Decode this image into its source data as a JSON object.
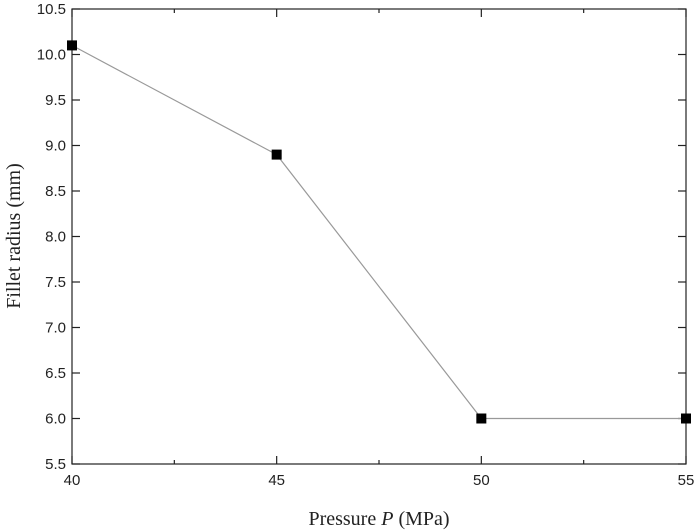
{
  "chart_data": {
    "type": "line",
    "title": "",
    "xlabel_pre": "Pressure ",
    "xlabel_var": "P",
    "xlabel_post": " (MPa)",
    "ylabel": "Fillet radius (mm)",
    "xlim": [
      40,
      55
    ],
    "ylim": [
      5.5,
      10.5
    ],
    "x_ticks": [
      40,
      45,
      50,
      55
    ],
    "x_tick_labels": [
      "40",
      "45",
      "50",
      "55"
    ],
    "y_ticks": [
      5.5,
      6.0,
      6.5,
      7.0,
      7.5,
      8.0,
      8.5,
      9.0,
      9.5,
      10.0,
      10.5
    ],
    "y_tick_labels": [
      "5.5",
      "6.0",
      "6.5",
      "7.0",
      "7.5",
      "8.0",
      "8.5",
      "9.0",
      "9.5",
      "10.0",
      "10.5"
    ],
    "grid": false,
    "series": [
      {
        "x": [
          40,
          45,
          50,
          55
        ],
        "values": [
          10.1,
          8.9,
          6.0,
          6.0
        ]
      }
    ],
    "colors": {
      "line": "#999999",
      "marker": "#000000",
      "axis": "#222222"
    }
  }
}
